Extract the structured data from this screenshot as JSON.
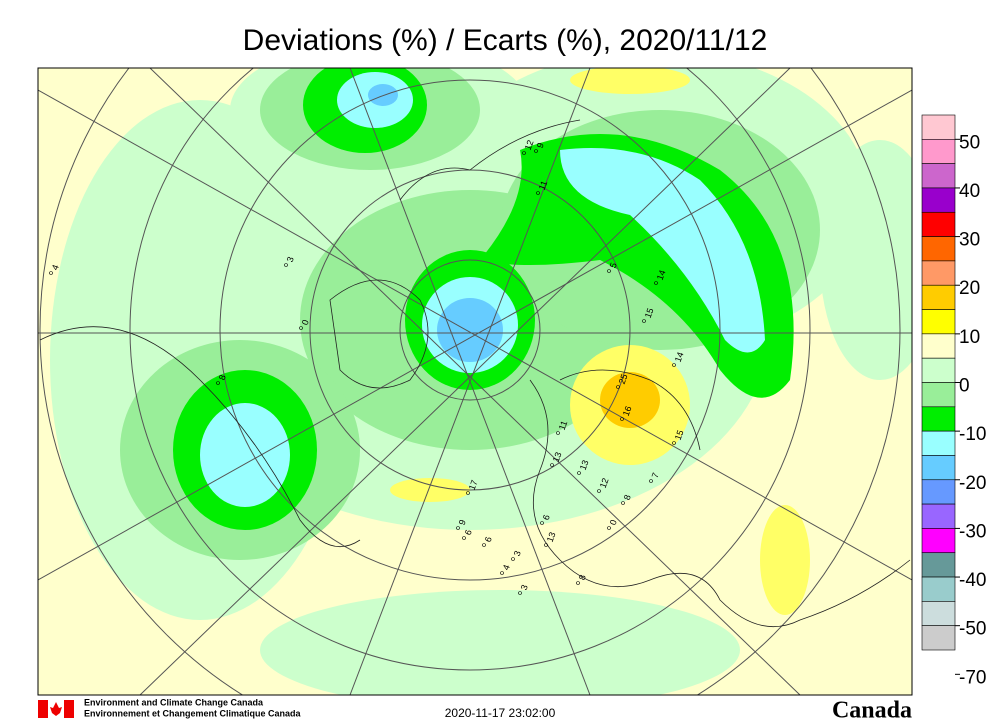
{
  "header": {
    "title": "Deviations (%) / Ecarts (%), 2020/11/12"
  },
  "map": {
    "station_values": [
      9,
      12,
      11,
      5,
      14,
      15,
      14,
      25,
      16,
      15,
      7,
      8,
      12,
      13,
      11,
      13,
      17,
      9,
      6,
      3,
      4,
      6,
      3,
      13,
      0,
      8,
      3,
      0,
      6,
      8,
      4
    ]
  },
  "colorbar": {
    "colors": [
      "#ffc8d2",
      "#ff99cc",
      "#cc66cc",
      "#9900cc",
      "#ff0000",
      "#ff6600",
      "#ff9966",
      "#ffcc00",
      "#ffff00",
      "#ffffcc",
      "#ccffcc",
      "#99ee99",
      "#00ee00",
      "#99ffff",
      "#66ccff",
      "#6699ff",
      "#9966ff",
      "#ff00ff",
      "#669999",
      "#99cccc",
      "#ccdddd",
      "#cccccc"
    ],
    "labels": [
      50,
      40,
      30,
      20,
      10,
      0,
      -10,
      -20,
      -30,
      -40,
      -50,
      -70
    ]
  },
  "footer": {
    "agency_en": "Environment and Climate Change Canada",
    "agency_fr": "Environnement et Changement Climatique Canada",
    "timestamp": "2020-11-17 23:02:00",
    "wordmark": "Canada"
  }
}
